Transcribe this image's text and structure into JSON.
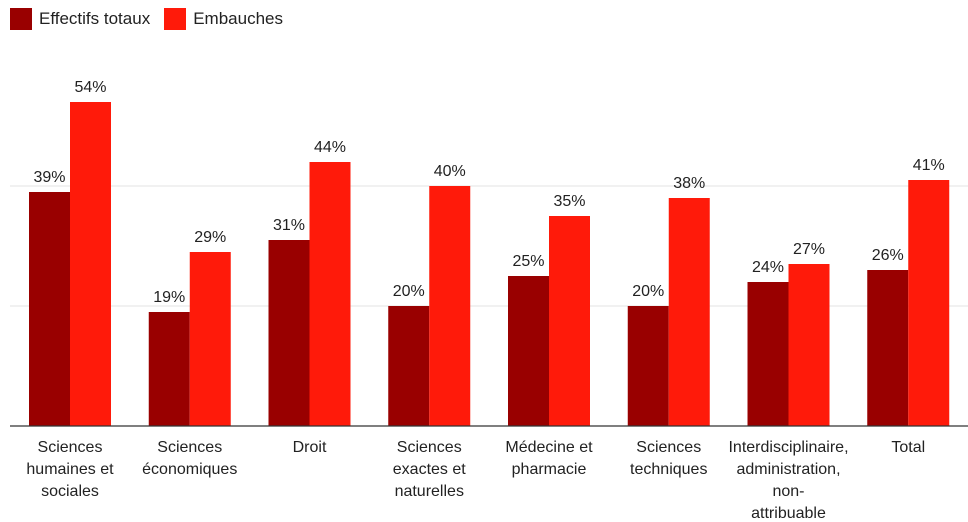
{
  "chart_data": {
    "type": "bar",
    "categories": [
      [
        "Sciences",
        "humaines et",
        "sociales"
      ],
      [
        "Sciences",
        "économiques"
      ],
      [
        "Droit"
      ],
      [
        "Sciences",
        "exactes et",
        "naturelles"
      ],
      [
        "Médecine et",
        "pharmacie"
      ],
      [
        "Sciences",
        "techniques"
      ],
      [
        "Interdisciplinaire,",
        "administration,",
        "non-",
        "attribuable"
      ],
      [
        "Total"
      ]
    ],
    "series": [
      {
        "name": "Effectifs totaux",
        "color": "#990000",
        "values": [
          39,
          19,
          31,
          20,
          25,
          20,
          24,
          26
        ]
      },
      {
        "name": "Embauches",
        "color": "#ff1a0a",
        "values": [
          54,
          29,
          44,
          40,
          35,
          38,
          27,
          41
        ]
      }
    ],
    "value_suffix": "%",
    "ylim": [
      0,
      60
    ],
    "grid": true,
    "legend_position": "top-left"
  }
}
